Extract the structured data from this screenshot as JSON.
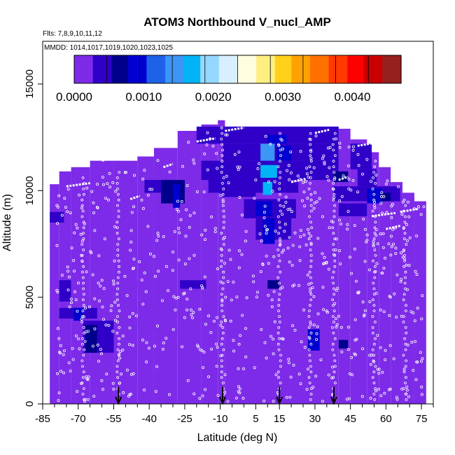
{
  "chart_data": {
    "type": "heatmap",
    "title": "ATOM3 Northbound V_nucl_AMP",
    "subtitle_flights": "Flts: 7,8,9,10,11,12",
    "subtitle_dates": "MMDD: 1014,1017,1019,1020,1023,1025",
    "xlabel": "Latitude (deg N)",
    "ylabel": "Altitude (m)",
    "xlim": [
      -85,
      80
    ],
    "ylim": [
      0,
      17000
    ],
    "x_ticks": [
      -85,
      -70,
      -55,
      -40,
      -25,
      -10,
      5,
      15,
      30,
      45,
      60,
      75
    ],
    "y_ticks": [
      0,
      5000,
      10000,
      15000
    ],
    "colorbar": {
      "min": 0.0,
      "max": 0.0047,
      "tick_values": [
        0.0,
        0.001,
        0.002,
        0.003,
        0.004
      ],
      "tick_labels": [
        "0.0000",
        "0.0010",
        "0.0020",
        "0.0030",
        "0.0040"
      ],
      "colors": [
        "#7d2be8",
        "#3000c8",
        "#00008c",
        "#0000d0",
        "#1e62ea",
        "#3c96f5",
        "#00b4f5",
        "#96d7ff",
        "#d8efff",
        "#fffde0",
        "#ffee80",
        "#ffd11a",
        "#ffa200",
        "#ff7000",
        "#ff3a00",
        "#ff0000",
        "#c80000",
        "#962020"
      ]
    },
    "background_value": 5e-05,
    "coverage": {
      "columns": [
        {
          "x0": -82,
          "x1": -78,
          "top": 10300
        },
        {
          "x0": -78,
          "x1": -73,
          "top": 10900
        },
        {
          "x0": -73,
          "x1": -65,
          "top": 11100
        },
        {
          "x0": -65,
          "x1": -55,
          "top": 11400
        },
        {
          "x0": -55,
          "x1": -45,
          "top": 11400
        },
        {
          "x0": -45,
          "x1": -38,
          "top": 11600
        },
        {
          "x0": -38,
          "x1": -28,
          "top": 12000
        },
        {
          "x0": -28,
          "x1": -18,
          "top": 12800
        },
        {
          "x0": -18,
          "x1": -11,
          "top": 13100
        },
        {
          "x0": -11,
          "x1": -8,
          "top": 13300
        },
        {
          "x0": -8,
          "x1": 40,
          "top": 13000
        },
        {
          "x0": 40,
          "x1": 45,
          "top": 12900
        },
        {
          "x0": 45,
          "x1": 52,
          "top": 12400
        },
        {
          "x0": 52,
          "x1": 57,
          "top": 11800
        },
        {
          "x0": 57,
          "x1": 62,
          "top": 11100
        },
        {
          "x0": 62,
          "x1": 67,
          "top": 10400
        },
        {
          "x0": 67,
          "x1": 72,
          "top": 9900
        },
        {
          "x0": 72,
          "x1": 77,
          "top": 9500
        }
      ]
    },
    "cells": [
      {
        "x0": -20,
        "x1": 40,
        "y0": 12200,
        "y1": 13000,
        "value": 0.0004
      },
      {
        "x0": 10,
        "x1": 18,
        "y0": 12200,
        "y1": 12600,
        "value": 0.0008
      },
      {
        "x0": -9,
        "x1": 40,
        "y0": 11400,
        "y1": 12200,
        "value": 0.0005
      },
      {
        "x0": 7,
        "x1": 13,
        "y0": 11200,
        "y1": 12200,
        "value": 0.0014
      },
      {
        "x0": 14,
        "x1": 20,
        "y0": 11000,
        "y1": 12100,
        "value": 0.0009
      },
      {
        "x0": 45,
        "x1": 54,
        "y0": 11000,
        "y1": 12200,
        "value": 0.0005
      },
      {
        "x0": -18,
        "x1": 40,
        "y0": 10500,
        "y1": 11400,
        "value": 0.0003
      },
      {
        "x0": 7,
        "x1": 14,
        "y0": 10600,
        "y1": 11200,
        "value": 0.0016
      },
      {
        "x0": 38,
        "x1": 44,
        "y0": 10400,
        "y1": 10900,
        "value": 0.0006
      },
      {
        "x0": 48,
        "x1": 56,
        "y0": 10200,
        "y1": 11000,
        "value": 0.0005
      },
      {
        "x0": -42,
        "x1": -35,
        "y0": 9900,
        "y1": 10500,
        "value": 0.0004
      },
      {
        "x0": -35,
        "x1": -25,
        "y0": 9400,
        "y1": 10500,
        "value": 0.0006
      },
      {
        "x0": -30,
        "x1": -27,
        "y0": 9200,
        "y1": 10300,
        "value": 0.0009
      },
      {
        "x0": -15,
        "x1": 20,
        "y0": 9900,
        "y1": 10600,
        "value": 0.0004
      },
      {
        "x0": -10,
        "x1": 5,
        "y0": 9700,
        "y1": 10300,
        "value": 0.0005
      },
      {
        "x0": 8,
        "x1": 12,
        "y0": 9800,
        "y1": 10400,
        "value": 0.0017
      },
      {
        "x0": 17,
        "x1": 23,
        "y0": 9900,
        "y1": 10400,
        "value": 0.0005
      },
      {
        "x0": 38,
        "x1": 66,
        "y0": 9500,
        "y1": 10200,
        "value": 0.0004
      },
      {
        "x0": 52,
        "x1": 58,
        "y0": 9400,
        "y1": 10100,
        "value": 0.0009
      },
      {
        "x0": 58,
        "x1": 62,
        "y0": 9500,
        "y1": 9900,
        "value": 0.0006
      },
      {
        "x0": 0,
        "x1": 22,
        "y0": 8700,
        "y1": 9600,
        "value": 0.0004
      },
      {
        "x0": 5,
        "x1": 12,
        "y0": 8800,
        "y1": 9500,
        "value": 0.001
      },
      {
        "x0": 40,
        "x1": 52,
        "y0": 8800,
        "y1": 9400,
        "value": 0.0003
      },
      {
        "x0": -82,
        "x1": -76,
        "y0": 8500,
        "y1": 9000,
        "value": 0.0003
      },
      {
        "x0": 5,
        "x1": 20,
        "y0": 7700,
        "y1": 8800,
        "value": 0.0005
      },
      {
        "x0": 8,
        "x1": 13,
        "y0": 7500,
        "y1": 8700,
        "value": 0.0008
      },
      {
        "x0": 20,
        "x1": 28,
        "y0": 7800,
        "y1": 8400,
        "value": 0.0002
      },
      {
        "x0": -27,
        "x1": -16,
        "y0": 5400,
        "y1": 5800,
        "value": 0.0004
      },
      {
        "x0": -51,
        "x1": -45,
        "y0": 5400,
        "y1": 5800,
        "value": 0.0002
      },
      {
        "x0": 10,
        "x1": 15,
        "y0": 5400,
        "y1": 5800,
        "value": 0.0007
      },
      {
        "x0": -78,
        "x1": -73,
        "y0": 4800,
        "y1": 5800,
        "value": 0.0003
      },
      {
        "x0": -78,
        "x1": -62,
        "y0": 4000,
        "y1": 4500,
        "value": 0.0004
      },
      {
        "x0": -72,
        "x1": -68,
        "y0": 3900,
        "y1": 4500,
        "value": 0.0008
      },
      {
        "x0": -44,
        "x1": -33,
        "y0": 3500,
        "y1": 4500,
        "value": 0.0002
      },
      {
        "x0": -68,
        "x1": -55,
        "y0": 2400,
        "y1": 3900,
        "value": 0.0003
      },
      {
        "x0": -67,
        "x1": -62,
        "y0": 2400,
        "y1": 3700,
        "value": 0.0006
      },
      {
        "x0": 27,
        "x1": 32,
        "y0": 2500,
        "y1": 3500,
        "value": 0.0008
      },
      {
        "x0": 40,
        "x1": 44,
        "y0": 2600,
        "y1": 3000,
        "value": 0.0007
      },
      {
        "x0": -70,
        "x1": -60,
        "y0": 1400,
        "y1": 2000,
        "value": 0.0002
      }
    ],
    "profile_markers_lat": [
      -53,
      -9,
      15,
      38
    ]
  }
}
